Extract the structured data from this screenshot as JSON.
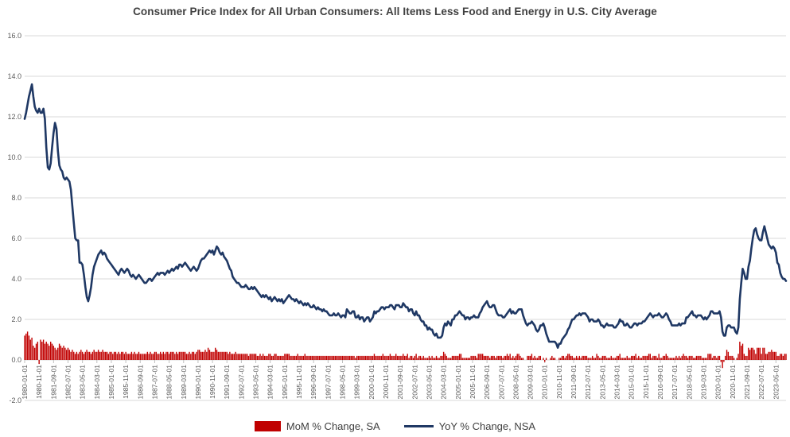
{
  "title": "Consumer Price Index for All Urban Consumers: All Items Less Food and Energy in U.S. City Average",
  "legend": {
    "items": [
      {
        "label": "MoM % Change, SA",
        "color": "#C00000",
        "marker": "bar-swatch"
      },
      {
        "label": "YoY % Change, NSA",
        "color": "#1F3864",
        "marker": "line-swatch"
      }
    ],
    "position": "bottom"
  },
  "y_axis": {
    "tick_labels": [
      "16.0",
      "14.0",
      "12.0",
      "10.0",
      "8.0",
      "6.0",
      "4.0",
      "2.0",
      "0.0",
      "-2.0"
    ],
    "min": -2.0,
    "max": 16.0,
    "tick_step": 2.0
  },
  "chart_data": {
    "type": "combo",
    "x": {
      "start": "1980-01",
      "end": "2023-12",
      "frequency": "monthly",
      "count": 528
    },
    "x_tick_labels": [
      "1980-01-01",
      "1980-11-01",
      "1981-09-01",
      "1982-07-01",
      "1983-05-01",
      "1984-03-01",
      "1985-01-01",
      "1985-11-01",
      "1986-09-01",
      "1987-07-01",
      "1988-05-01",
      "1989-03-01",
      "1990-01-01",
      "1990-11-01",
      "1991-09-01",
      "1992-07-01",
      "1993-05-01",
      "1994-03-01",
      "1995-01-01",
      "1995-11-01",
      "1996-09-01",
      "1997-07-01",
      "1998-05-01",
      "1999-03-01",
      "2000-01-01",
      "2000-11-01",
      "2001-09-01",
      "2002-07-01",
      "2003-05-01",
      "2004-03-01",
      "2005-01-01",
      "2005-11-01",
      "2006-09-01",
      "2007-07-01",
      "2008-05-01",
      "2009-03-01",
      "2010-01-01",
      "2010-11-01",
      "2011-09-01",
      "2012-07-01",
      "2013-05-01",
      "2014-03-01",
      "2015-01-01",
      "2015-11-01",
      "2016-09-01",
      "2017-07-01",
      "2018-05-01",
      "2019-03-01",
      "2020-01-01",
      "2020-11-01",
      "2021-09-01",
      "2022-07-01",
      "2023-05-01"
    ],
    "x_tick_month_interval": 10,
    "ylim": [
      -2,
      16
    ],
    "grid": true,
    "legend_position": "bottom",
    "series": [
      {
        "name": "MoM % Change, SA",
        "type": "bar",
        "color": "#C00000",
        "values": [
          1.2,
          1.3,
          1.4,
          1.2,
          1.0,
          1.1,
          0.7,
          0.6,
          0.8,
          0.9,
          -0.2,
          1.0,
          0.9,
          1.0,
          0.8,
          0.9,
          0.8,
          0.7,
          0.9,
          0.8,
          0.7,
          0.6,
          0.5,
          0.6,
          0.8,
          0.7,
          0.6,
          0.7,
          0.6,
          0.5,
          0.6,
          0.5,
          0.4,
          0.5,
          0.4,
          0.3,
          0.4,
          0.3,
          0.4,
          0.5,
          0.4,
          0.3,
          0.4,
          0.5,
          0.4,
          0.4,
          0.3,
          0.4,
          0.5,
          0.4,
          0.4,
          0.5,
          0.4,
          0.4,
          0.5,
          0.4,
          0.4,
          0.4,
          0.3,
          0.4,
          0.4,
          0.3,
          0.4,
          0.4,
          0.3,
          0.4,
          0.3,
          0.4,
          0.4,
          0.3,
          0.4,
          0.3,
          0.3,
          0.3,
          0.4,
          0.3,
          0.4,
          0.3,
          0.3,
          0.4,
          0.3,
          0.3,
          0.3,
          0.3,
          0.3,
          0.4,
          0.3,
          0.4,
          0.3,
          0.3,
          0.4,
          0.4,
          0.3,
          0.3,
          0.4,
          0.3,
          0.4,
          0.3,
          0.4,
          0.4,
          0.3,
          0.4,
          0.4,
          0.4,
          0.3,
          0.4,
          0.3,
          0.4,
          0.4,
          0.4,
          0.4,
          0.4,
          0.3,
          0.3,
          0.4,
          0.3,
          0.4,
          0.4,
          0.3,
          0.4,
          0.5,
          0.5,
          0.4,
          0.4,
          0.4,
          0.5,
          0.4,
          0.6,
          0.5,
          0.4,
          0.4,
          0.4,
          0.6,
          0.5,
          0.4,
          0.4,
          0.4,
          0.4,
          0.4,
          0.4,
          0.4,
          0.3,
          0.4,
          0.3,
          0.3,
          0.3,
          0.4,
          0.3,
          0.3,
          0.3,
          0.3,
          0.3,
          0.3,
          0.3,
          0.3,
          0.2,
          0.3,
          0.3,
          0.3,
          0.3,
          0.3,
          0.2,
          0.2,
          0.3,
          0.2,
          0.3,
          0.2,
          0.2,
          0.2,
          0.3,
          0.3,
          0.2,
          0.2,
          0.3,
          0.3,
          0.2,
          0.2,
          0.2,
          0.2,
          0.2,
          0.3,
          0.3,
          0.3,
          0.3,
          0.2,
          0.2,
          0.2,
          0.2,
          0.2,
          0.3,
          0.2,
          0.2,
          0.2,
          0.2,
          0.3,
          0.2,
          0.2,
          0.2,
          0.2,
          0.2,
          0.2,
          0.2,
          0.2,
          0.2,
          0.2,
          0.2,
          0.2,
          0.2,
          0.2,
          0.2,
          0.2,
          0.2,
          0.2,
          0.2,
          0.2,
          0.2,
          0.2,
          0.2,
          0.2,
          0.2,
          0.2,
          0.2,
          0.2,
          0.2,
          0.2,
          0.2,
          0.2,
          0.2,
          0.2,
          0.1,
          0.2,
          0.2,
          0.2,
          0.2,
          0.2,
          0.2,
          0.2,
          0.2,
          0.2,
          0.2,
          0.2,
          0.2,
          0.3,
          0.2,
          0.2,
          0.2,
          0.2,
          0.2,
          0.3,
          0.2,
          0.2,
          0.2,
          0.2,
          0.3,
          0.2,
          0.2,
          0.2,
          0.3,
          0.2,
          0.2,
          0.2,
          0.2,
          0.3,
          0.2,
          0.2,
          0.3,
          0.1,
          0.2,
          0.2,
          0.1,
          0.2,
          0.3,
          0.1,
          0.2,
          0.2,
          0.1,
          0.2,
          0.1,
          0.1,
          0.1,
          0.2,
          0.1,
          0.2,
          0.1,
          0.1,
          0.2,
          0.1,
          0.1,
          0.2,
          0.2,
          0.4,
          0.3,
          0.2,
          0.1,
          0.1,
          0.1,
          0.2,
          0.2,
          0.2,
          0.2,
          0.2,
          0.3,
          0.3,
          0.1,
          0.1,
          0.1,
          0.1,
          0.1,
          0.1,
          0.2,
          0.2,
          0.2,
          0.2,
          0.1,
          0.3,
          0.3,
          0.3,
          0.3,
          0.2,
          0.2,
          0.2,
          0.2,
          0.1,
          0.2,
          0.2,
          0.2,
          0.1,
          0.2,
          0.2,
          0.2,
          0.2,
          0.1,
          0.2,
          0.2,
          0.3,
          0.2,
          0.3,
          0.1,
          0.2,
          0.1,
          0.2,
          0.3,
          0.3,
          0.2,
          0.1,
          0.1,
          0.0,
          0.0,
          0.2,
          0.2,
          0.2,
          0.3,
          0.1,
          0.2,
          0.1,
          0.1,
          0.2,
          0.2,
          0.0,
          0.1,
          -0.1,
          0.1,
          0.0,
          0.0,
          0.1,
          0.2,
          0.1,
          0.1,
          0.0,
          0.0,
          0.1,
          0.1,
          0.2,
          0.2,
          0.1,
          0.2,
          0.3,
          0.3,
          0.2,
          0.2,
          0.1,
          0.1,
          0.2,
          0.1,
          0.2,
          0.1,
          0.2,
          0.2,
          0.2,
          0.2,
          0.1,
          0.1,
          0.1,
          0.2,
          0.1,
          0.1,
          0.3,
          0.2,
          0.1,
          0.1,
          0.2,
          0.2,
          0.2,
          0.1,
          0.1,
          0.1,
          0.2,
          0.1,
          0.1,
          0.1,
          0.2,
          0.2,
          0.3,
          0.1,
          0.1,
          0.1,
          0.1,
          0.2,
          0.1,
          0.1,
          0.2,
          0.2,
          0.2,
          0.3,
          0.1,
          0.2,
          0.1,
          0.1,
          0.2,
          0.2,
          0.2,
          0.2,
          0.3,
          0.3,
          0.1,
          0.2,
          0.2,
          0.2,
          0.1,
          0.3,
          0.1,
          0.1,
          0.2,
          0.2,
          0.3,
          0.2,
          0.1,
          0.1,
          0.1,
          0.1,
          0.1,
          0.2,
          0.1,
          0.2,
          0.1,
          0.2,
          0.3,
          0.2,
          0.2,
          0.1,
          0.2,
          0.2,
          0.2,
          0.1,
          0.1,
          0.2,
          0.2,
          0.2,
          0.2,
          0.1,
          0.1,
          0.1,
          0.1,
          0.3,
          0.3,
          0.3,
          0.1,
          0.2,
          0.2,
          0.1,
          0.2,
          0.2,
          -0.1,
          -0.4,
          -0.1,
          0.2,
          0.5,
          0.4,
          0.2,
          0.2,
          0.2,
          0.1,
          0.0,
          0.1,
          0.3,
          0.9,
          0.7,
          0.8,
          0.3,
          0.2,
          0.2,
          0.6,
          0.5,
          0.6,
          0.6,
          0.5,
          0.3,
          0.6,
          0.6,
          0.6,
          0.3,
          0.6,
          0.6,
          0.3,
          0.3,
          0.4,
          0.4,
          0.5,
          0.4,
          0.4,
          0.4,
          0.2,
          0.2,
          0.3,
          0.3,
          0.2,
          0.3,
          0.3
        ]
      },
      {
        "name": "YoY % Change, NSA",
        "type": "line",
        "color": "#1F3864",
        "values": [
          11.9,
          12.2,
          12.6,
          13.0,
          13.3,
          13.6,
          13.0,
          12.5,
          12.3,
          12.2,
          12.4,
          12.2,
          12.2,
          12.4,
          11.9,
          10.5,
          9.5,
          9.4,
          9.7,
          10.5,
          11.2,
          11.7,
          11.4,
          10.3,
          9.6,
          9.4,
          9.3,
          9.0,
          8.9,
          9.0,
          8.9,
          8.8,
          8.4,
          7.6,
          6.8,
          6.0,
          5.9,
          5.9,
          4.8,
          4.8,
          4.7,
          4.2,
          3.6,
          3.1,
          2.9,
          3.2,
          3.6,
          4.2,
          4.6,
          4.8,
          5.0,
          5.2,
          5.3,
          5.4,
          5.2,
          5.3,
          5.2,
          5.0,
          4.9,
          4.8,
          4.7,
          4.6,
          4.5,
          4.4,
          4.3,
          4.2,
          4.4,
          4.5,
          4.4,
          4.3,
          4.4,
          4.5,
          4.4,
          4.2,
          4.1,
          4.2,
          4.1,
          4.0,
          4.1,
          4.2,
          4.1,
          4.0,
          3.9,
          3.8,
          3.8,
          3.9,
          4.0,
          4.0,
          3.9,
          4.0,
          4.1,
          4.2,
          4.3,
          4.2,
          4.3,
          4.3,
          4.3,
          4.2,
          4.3,
          4.4,
          4.3,
          4.4,
          4.5,
          4.4,
          4.5,
          4.6,
          4.5,
          4.7,
          4.7,
          4.6,
          4.7,
          4.8,
          4.7,
          4.6,
          4.5,
          4.4,
          4.5,
          4.6,
          4.5,
          4.4,
          4.5,
          4.7,
          4.9,
          5.0,
          5.0,
          5.1,
          5.2,
          5.3,
          5.4,
          5.3,
          5.4,
          5.2,
          5.4,
          5.6,
          5.5,
          5.3,
          5.2,
          5.3,
          5.1,
          5.0,
          4.9,
          4.7,
          4.5,
          4.4,
          4.1,
          4.0,
          3.9,
          3.8,
          3.8,
          3.7,
          3.6,
          3.6,
          3.6,
          3.7,
          3.6,
          3.5,
          3.5,
          3.6,
          3.5,
          3.6,
          3.5,
          3.4,
          3.3,
          3.2,
          3.1,
          3.2,
          3.1,
          3.2,
          3.1,
          3.0,
          3.1,
          2.9,
          3.0,
          3.1,
          3.0,
          2.9,
          3.0,
          2.9,
          3.0,
          2.8,
          2.9,
          3.0,
          3.1,
          3.2,
          3.1,
          3.0,
          3.0,
          2.9,
          3.0,
          2.9,
          2.8,
          2.9,
          2.8,
          2.7,
          2.8,
          2.7,
          2.8,
          2.7,
          2.6,
          2.6,
          2.7,
          2.6,
          2.5,
          2.6,
          2.5,
          2.5,
          2.4,
          2.5,
          2.4,
          2.4,
          2.3,
          2.2,
          2.2,
          2.2,
          2.3,
          2.2,
          2.2,
          2.3,
          2.2,
          2.1,
          2.2,
          2.2,
          2.1,
          2.5,
          2.4,
          2.3,
          2.3,
          2.4,
          2.4,
          2.1,
          2.1,
          2.2,
          2.0,
          2.1,
          2.1,
          1.9,
          2.0,
          2.1,
          2.1,
          1.9,
          2.0,
          2.1,
          2.4,
          2.3,
          2.4,
          2.4,
          2.5,
          2.6,
          2.6,
          2.5,
          2.6,
          2.6,
          2.6,
          2.7,
          2.7,
          2.6,
          2.5,
          2.7,
          2.7,
          2.7,
          2.6,
          2.6,
          2.8,
          2.7,
          2.6,
          2.6,
          2.4,
          2.5,
          2.5,
          2.3,
          2.2,
          2.4,
          2.2,
          2.2,
          2.0,
          1.9,
          1.9,
          1.7,
          1.7,
          1.5,
          1.6,
          1.5,
          1.5,
          1.3,
          1.2,
          1.3,
          1.1,
          1.1,
          1.1,
          1.2,
          1.6,
          1.8,
          1.7,
          1.9,
          1.8,
          1.7,
          2.0,
          2.0,
          2.2,
          2.2,
          2.3,
          2.4,
          2.3,
          2.2,
          2.2,
          2.0,
          2.1,
          2.1,
          2.0,
          2.1,
          2.1,
          2.2,
          2.1,
          2.1,
          2.1,
          2.3,
          2.4,
          2.6,
          2.7,
          2.8,
          2.9,
          2.7,
          2.6,
          2.6,
          2.7,
          2.7,
          2.5,
          2.3,
          2.2,
          2.2,
          2.2,
          2.1,
          2.1,
          2.2,
          2.3,
          2.4,
          2.5,
          2.3,
          2.4,
          2.3,
          2.3,
          2.4,
          2.5,
          2.5,
          2.5,
          2.2,
          2.0,
          1.8,
          1.7,
          1.8,
          1.8,
          1.9,
          1.8,
          1.7,
          1.5,
          1.4,
          1.5,
          1.7,
          1.7,
          1.8,
          1.6,
          1.3,
          1.1,
          0.9,
          0.9,
          0.9,
          0.9,
          0.9,
          0.8,
          0.6,
          0.8,
          0.8,
          1.0,
          1.1,
          1.2,
          1.3,
          1.5,
          1.6,
          1.8,
          2.0,
          2.0,
          2.1,
          2.2,
          2.2,
          2.3,
          2.2,
          2.3,
          2.3,
          2.3,
          2.2,
          2.1,
          1.9,
          2.0,
          2.0,
          1.9,
          1.9,
          1.9,
          2.0,
          1.9,
          1.7,
          1.7,
          1.6,
          1.7,
          1.8,
          1.7,
          1.7,
          1.7,
          1.7,
          1.6,
          1.6,
          1.7,
          1.8,
          2.0,
          1.9,
          1.9,
          1.7,
          1.7,
          1.8,
          1.7,
          1.6,
          1.6,
          1.7,
          1.8,
          1.8,
          1.7,
          1.8,
          1.8,
          1.8,
          1.9,
          1.9,
          2.0,
          2.1,
          2.2,
          2.3,
          2.2,
          2.1,
          2.2,
          2.2,
          2.2,
          2.3,
          2.2,
          2.1,
          2.1,
          2.2,
          2.3,
          2.2,
          2.0,
          1.9,
          1.7,
          1.7,
          1.7,
          1.7,
          1.7,
          1.8,
          1.7,
          1.8,
          1.8,
          1.8,
          2.1,
          2.1,
          2.2,
          2.3,
          2.4,
          2.2,
          2.2,
          2.1,
          2.2,
          2.2,
          2.2,
          2.1,
          2.0,
          2.1,
          2.0,
          2.1,
          2.2,
          2.4,
          2.4,
          2.3,
          2.3,
          2.3,
          2.3,
          2.4,
          2.1,
          1.4,
          1.2,
          1.2,
          1.6,
          1.7,
          1.7,
          1.6,
          1.6,
          1.6,
          1.4,
          1.3,
          1.6,
          3.0,
          3.8,
          4.5,
          4.3,
          4.0,
          4.0,
          4.6,
          4.9,
          5.5,
          6.0,
          6.4,
          6.5,
          6.2,
          6.0,
          5.9,
          5.9,
          6.3,
          6.6,
          6.3,
          6.0,
          5.7,
          5.6,
          5.5,
          5.6,
          5.5,
          5.3,
          4.8,
          4.7,
          4.3,
          4.1,
          4.0,
          4.0,
          3.9
        ]
      }
    ]
  },
  "colors": {
    "title_text": "#404040",
    "axis_text": "#595959",
    "gridline": "#D9D9D9",
    "tick_mark": "#BFBFBF",
    "bar": "#C00000",
    "line": "#1F3864"
  }
}
